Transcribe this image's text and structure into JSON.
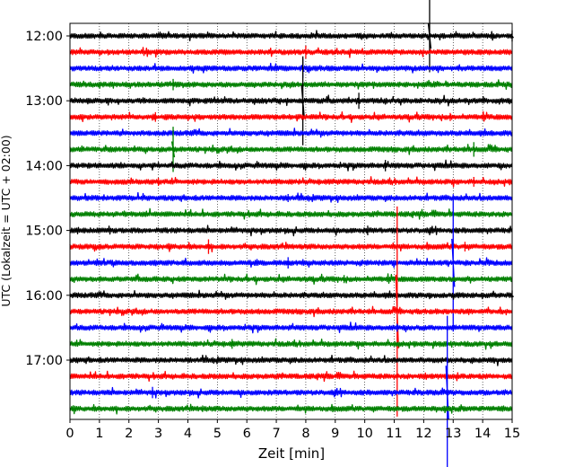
{
  "chart_data": {
    "type": "line",
    "subtype": "helicorder",
    "title": "",
    "xlabel": "Zeit  [min]",
    "ylabel": "UTC (Lokalzeit = UTC + 02:00)",
    "xlim": [
      0,
      15
    ],
    "x_ticks": [
      0,
      1,
      2,
      3,
      4,
      5,
      6,
      7,
      8,
      9,
      10,
      11,
      12,
      13,
      14,
      15
    ],
    "x_tick_labels": [
      "0",
      "1",
      "2",
      "3",
      "4",
      "5",
      "6",
      "7",
      "8",
      "9",
      "10",
      "11",
      "12",
      "13",
      "14",
      "15"
    ],
    "y_tick_labels": [
      "12:00",
      "13:00",
      "14:00",
      "15:00",
      "16:00",
      "17:00"
    ],
    "y_tick_rows": [
      0,
      4,
      8,
      12,
      16,
      20
    ],
    "x_grid": true,
    "x_grid_style": "dotted",
    "row_start_times": [
      "12:00",
      "12:15",
      "12:30",
      "12:45",
      "13:00",
      "13:15",
      "13:30",
      "13:45",
      "14:00",
      "14:15",
      "14:30",
      "14:45",
      "15:00",
      "15:15",
      "15:30",
      "15:45",
      "16:00",
      "16:15",
      "16:30",
      "16:45",
      "17:00",
      "17:15",
      "17:30",
      "17:45"
    ],
    "row_colors": [
      "#000000",
      "#ff0000",
      "#0000ff",
      "#008000"
    ],
    "series": [
      {
        "row": 0,
        "start": "12:00",
        "color": "#000000",
        "events": [
          {
            "t": 12.2,
            "amplitude": 0.45
          },
          {
            "t": 15.0,
            "amplitude": 0.07
          }
        ]
      },
      {
        "row": 1,
        "start": "12:15",
        "color": "#ff0000",
        "events": [
          {
            "t": 8.0,
            "amplitude": 0.08
          }
        ]
      },
      {
        "row": 2,
        "start": "12:30",
        "color": "#0000ff",
        "events": [
          {
            "t": 7.9,
            "amplitude": 0.12
          }
        ]
      },
      {
        "row": 3,
        "start": "12:45",
        "color": "#008000",
        "events": [
          {
            "t": 3.5,
            "amplitude": 0.07
          }
        ]
      },
      {
        "row": 4,
        "start": "13:00",
        "color": "#000000",
        "events": [
          {
            "t": 7.9,
            "amplitude": 0.55
          },
          {
            "t": 9.8,
            "amplitude": 0.1
          }
        ]
      },
      {
        "row": 5,
        "start": "13:15",
        "color": "#ff0000",
        "events": [
          {
            "t": 2.9,
            "amplitude": 0.06
          },
          {
            "t": 12.9,
            "amplitude": 0.05
          }
        ]
      },
      {
        "row": 6,
        "start": "13:30",
        "color": "#0000ff",
        "events": []
      },
      {
        "row": 7,
        "start": "13:45",
        "color": "#008000",
        "events": [
          {
            "t": 3.5,
            "amplitude": 0.28
          },
          {
            "t": 13.7,
            "amplitude": 0.09
          }
        ]
      },
      {
        "row": 8,
        "start": "14:00",
        "color": "#000000",
        "events": [
          {
            "t": 10.7,
            "amplitude": 0.07
          }
        ]
      },
      {
        "row": 9,
        "start": "14:15",
        "color": "#ff0000",
        "events": [
          {
            "t": 3.0,
            "amplitude": 0.05
          },
          {
            "t": 13.7,
            "amplitude": 0.06
          }
        ]
      },
      {
        "row": 10,
        "start": "14:30",
        "color": "#0000ff",
        "events": [
          {
            "t": 7.4,
            "amplitude": 0.05
          }
        ]
      },
      {
        "row": 11,
        "start": "14:45",
        "color": "#008000",
        "events": []
      },
      {
        "row": 12,
        "start": "15:00",
        "color": "#000000",
        "events": [
          {
            "t": 10.1,
            "amplitude": 0.06
          }
        ]
      },
      {
        "row": 13,
        "start": "15:15",
        "color": "#ff0000",
        "events": [
          {
            "t": 4.7,
            "amplitude": 0.09
          },
          {
            "t": 13.4,
            "amplitude": 0.06
          }
        ]
      },
      {
        "row": 14,
        "start": "15:30",
        "color": "#0000ff",
        "events": [
          {
            "t": 13.0,
            "amplitude": 0.85
          },
          {
            "t": 7.4,
            "amplitude": 0.07
          }
        ]
      },
      {
        "row": 15,
        "start": "15:45",
        "color": "#008000",
        "events": [
          {
            "t": 9.3,
            "amplitude": 0.05
          }
        ]
      },
      {
        "row": 16,
        "start": "16:00",
        "color": "#000000",
        "events": [
          {
            "t": 15.0,
            "amplitude": 0.06
          }
        ]
      },
      {
        "row": 17,
        "start": "16:15",
        "color": "#ff0000",
        "events": [
          {
            "t": 11.1,
            "amplitude": 1.3
          }
        ]
      },
      {
        "row": 18,
        "start": "16:30",
        "color": "#0000ff",
        "events": [
          {
            "t": 11.1,
            "amplitude": 0.05
          }
        ]
      },
      {
        "row": 19,
        "start": "16:45",
        "color": "#008000",
        "events": [
          {
            "t": 5.5,
            "amplitude": 0.06
          }
        ]
      },
      {
        "row": 20,
        "start": "17:00",
        "color": "#000000",
        "events": []
      },
      {
        "row": 21,
        "start": "17:15",
        "color": "#ff0000",
        "events": []
      },
      {
        "row": 22,
        "start": "17:30",
        "color": "#0000ff",
        "events": [
          {
            "t": 12.8,
            "amplitude": 0.95
          },
          {
            "t": 2.8,
            "amplitude": 0.07
          }
        ]
      },
      {
        "row": 23,
        "start": "17:45",
        "color": "#008000",
        "events": [
          {
            "t": 4.5,
            "amplitude": 0.04
          }
        ]
      }
    ]
  }
}
